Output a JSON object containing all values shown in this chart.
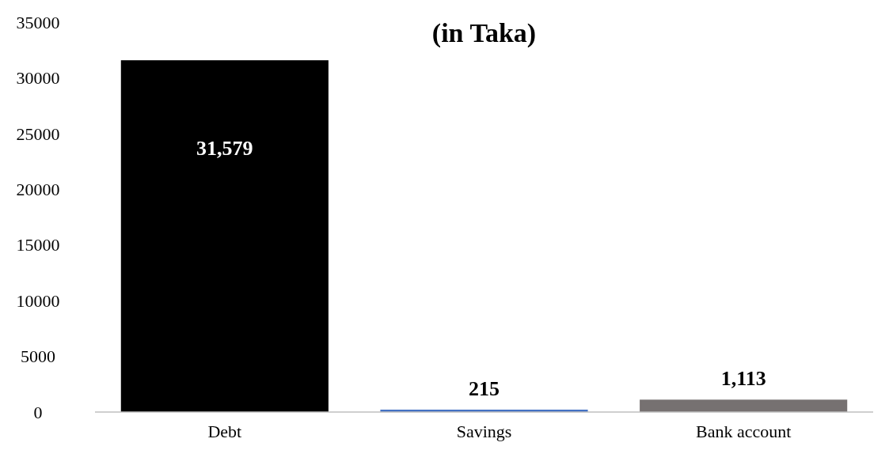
{
  "chart_data": {
    "type": "bar",
    "title": "(in Taka)",
    "categories": [
      "Debt",
      "Savings",
      "Bank account"
    ],
    "values": [
      31579,
      215,
      1113
    ],
    "colors": [
      "#000000",
      "#4472c4",
      "#767171"
    ],
    "value_labels": [
      "31,579",
      "215",
      "1,113"
    ],
    "ylim": [
      0,
      35000
    ],
    "yticks": [
      0,
      5000,
      10000,
      15000,
      20000,
      25000,
      30000,
      35000
    ],
    "grid": false
  }
}
